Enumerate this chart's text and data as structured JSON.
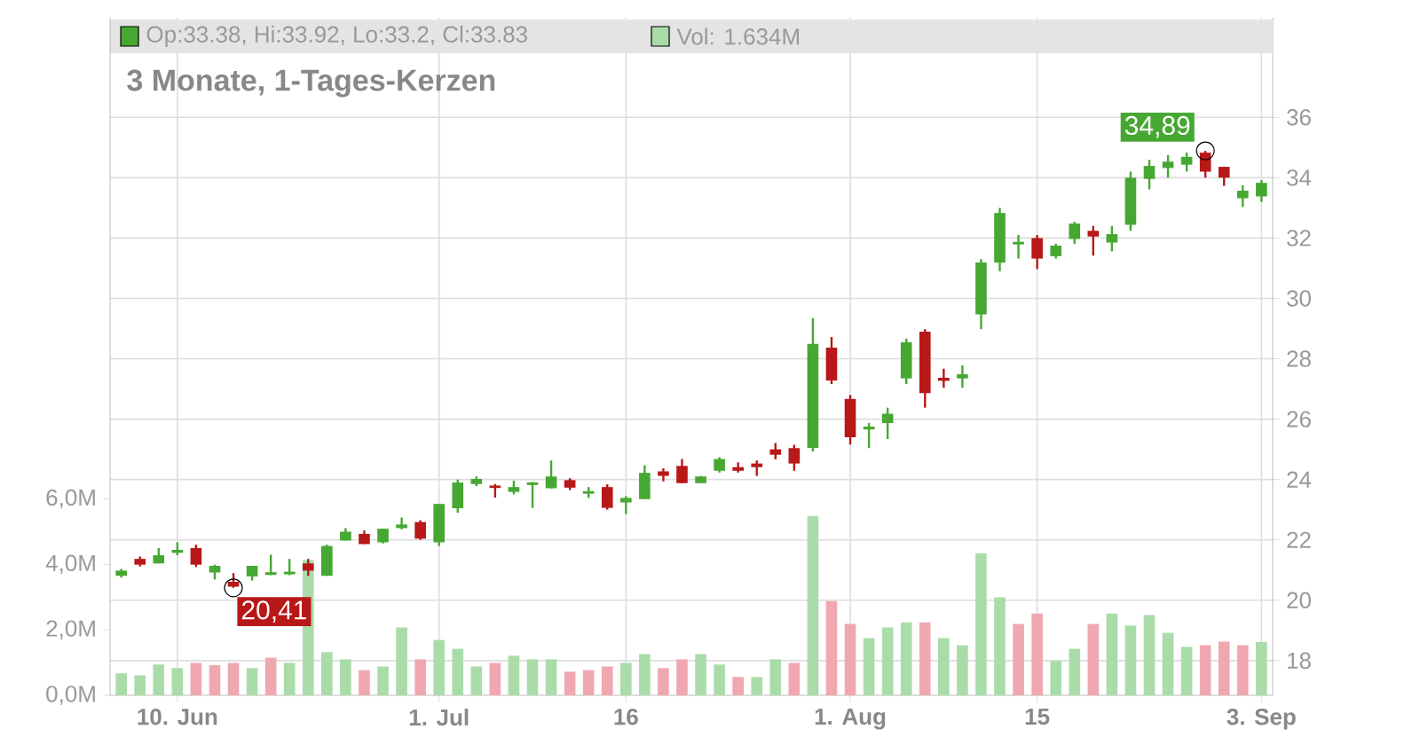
{
  "chart_data": {
    "type": "candlestick",
    "title": "3 Monate, 1-Tages-Kerzen",
    "categories": [
      null,
      null,
      null,
      "10. Jun",
      null,
      null,
      null,
      null,
      null,
      null,
      null,
      null,
      null,
      null,
      null,
      null,
      null,
      "1. Jul",
      null,
      null,
      null,
      null,
      null,
      null,
      null,
      null,
      null,
      "16",
      null,
      null,
      null,
      null,
      null,
      null,
      null,
      null,
      null,
      null,
      null,
      "1. Aug",
      null,
      null,
      null,
      null,
      null,
      null,
      null,
      null,
      null,
      "15",
      null,
      null,
      null,
      null,
      null,
      null,
      null,
      null,
      null,
      null,
      null,
      "3. Sep"
    ],
    "series": [
      {
        "name": "Op:33.38, Hi:33.92, Lo:33.2, Cl:33.83",
        "color": "#46a832",
        "ohlc": [
          [
            20.81,
            21.04,
            20.75,
            20.98
          ],
          [
            21.37,
            21.45,
            21.12,
            21.18
          ],
          [
            21.22,
            21.73,
            21.22,
            21.49
          ],
          [
            21.57,
            21.92,
            21.49,
            21.67
          ],
          [
            21.73,
            21.84,
            21.1,
            21.18
          ],
          [
            20.92,
            21.18,
            20.69,
            21.14
          ],
          [
            20.61,
            20.9,
            20.41,
            20.45
          ],
          [
            20.79,
            21.14,
            20.65,
            21.14
          ],
          [
            20.88,
            21.51,
            20.83,
            20.92
          ],
          [
            20.9,
            21.37,
            20.83,
            20.94
          ],
          [
            21.22,
            21.37,
            20.81,
            20.98
          ],
          [
            20.81,
            21.84,
            20.81,
            21.8
          ],
          [
            21.98,
            22.39,
            21.98,
            22.27
          ],
          [
            22.2,
            22.31,
            21.86,
            21.86
          ],
          [
            21.92,
            22.37,
            21.88,
            22.37
          ],
          [
            22.39,
            22.74,
            22.35,
            22.51
          ],
          [
            22.59,
            22.65,
            22.0,
            22.04
          ],
          [
            21.92,
            23.19,
            21.8,
            23.19
          ],
          [
            23.05,
            24.0,
            22.9,
            23.9
          ],
          [
            23.85,
            24.1,
            23.78,
            24.02
          ],
          [
            23.8,
            23.85,
            23.4,
            23.72
          ],
          [
            23.59,
            23.96,
            23.51,
            23.75
          ],
          [
            23.86,
            23.92,
            23.06,
            23.88
          ],
          [
            23.71,
            24.63,
            23.71,
            24.1
          ],
          [
            23.98,
            24.04,
            23.65,
            23.73
          ],
          [
            23.57,
            23.75,
            23.39,
            23.61
          ],
          [
            23.75,
            23.84,
            23.0,
            23.06
          ],
          [
            23.24,
            23.45,
            22.86,
            23.39
          ],
          [
            23.35,
            24.47,
            23.35,
            24.22
          ],
          [
            24.27,
            24.37,
            23.94,
            24.12
          ],
          [
            24.45,
            24.68,
            23.88,
            23.88
          ],
          [
            23.88,
            24.12,
            23.88,
            24.1
          ],
          [
            24.29,
            24.74,
            24.23,
            24.68
          ],
          [
            24.41,
            24.57,
            24.23,
            24.29
          ],
          [
            24.53,
            24.63,
            24.12,
            24.41
          ],
          [
            25.0,
            25.21,
            24.67,
            24.82
          ],
          [
            25.04,
            25.15,
            24.29,
            24.53
          ],
          [
            25.05,
            29.35,
            24.93,
            28.49
          ],
          [
            28.37,
            28.72,
            27.16,
            27.28
          ],
          [
            26.67,
            26.8,
            25.16,
            25.4
          ],
          [
            25.7,
            25.87,
            25.04,
            25.75
          ],
          [
            25.87,
            26.38,
            25.34,
            26.18
          ],
          [
            27.35,
            28.67,
            27.16,
            28.55
          ],
          [
            28.9,
            28.98,
            26.38,
            26.86
          ],
          [
            27.33,
            27.67,
            27.04,
            27.27
          ],
          [
            27.35,
            27.78,
            27.04,
            27.49
          ],
          [
            29.47,
            31.3,
            28.98,
            31.19
          ],
          [
            31.19,
            33.0,
            30.9,
            32.83
          ],
          [
            31.83,
            32.1,
            31.32,
            31.87
          ],
          [
            32.0,
            32.1,
            30.97,
            31.32
          ],
          [
            31.4,
            31.81,
            31.32,
            31.75
          ],
          [
            31.97,
            32.54,
            31.81,
            32.48
          ],
          [
            32.24,
            32.4,
            31.42,
            32.05
          ],
          [
            31.85,
            32.4,
            31.56,
            32.13
          ],
          [
            32.44,
            34.2,
            32.24,
            34.0
          ],
          [
            33.96,
            34.59,
            33.61,
            34.39
          ],
          [
            34.32,
            34.75,
            34.0,
            34.53
          ],
          [
            34.43,
            34.83,
            34.2,
            34.69
          ],
          [
            34.83,
            34.89,
            34.0,
            34.2
          ],
          [
            34.36,
            34.36,
            33.73,
            34.0
          ],
          [
            33.32,
            33.75,
            33.03,
            33.57
          ],
          [
            33.38,
            33.92,
            33.2,
            33.83
          ]
        ],
        "colors": [
          "#46a832",
          "#b81818",
          "#46a832",
          "#46a832",
          "#b81818",
          "#46a832",
          "#b81818",
          "#46a832",
          "#46a832",
          "#46a832",
          "#b81818",
          "#46a832",
          "#46a832",
          "#b81818",
          "#46a832",
          "#46a832",
          "#b81818",
          "#46a832",
          "#46a832",
          "#46a832",
          "#b81818",
          "#46a832",
          "#46a832",
          "#46a832",
          "#b81818",
          "#46a832",
          "#b81818",
          "#46a832",
          "#46a832",
          "#b81818",
          "#b81818",
          "#46a832",
          "#46a832",
          "#b81818",
          "#b81818",
          "#b81818",
          "#b81818",
          "#46a832",
          "#b81818",
          "#b81818",
          "#46a832",
          "#46a832",
          "#46a832",
          "#b81818",
          "#b81818",
          "#46a832",
          "#46a832",
          "#46a832",
          "#46a832",
          "#b81818",
          "#46a832",
          "#46a832",
          "#b81818",
          "#46a832",
          "#46a832",
          "#46a832",
          "#46a832",
          "#46a832",
          "#b81818",
          "#b81818",
          "#46a832",
          "#46a832"
        ]
      },
      {
        "name": "Vol: 1.634M",
        "type": "bar",
        "axis": "y2",
        "color": "#aadcaa",
        "values": [
          0.67,
          0.61,
          0.94,
          0.83,
          0.99,
          0.92,
          0.99,
          0.83,
          1.15,
          0.99,
          4.13,
          1.32,
          1.1,
          0.77,
          0.88,
          2.07,
          1.1,
          1.69,
          1.42,
          0.88,
          0.99,
          1.21,
          1.1,
          1.1,
          0.72,
          0.77,
          0.88,
          0.99,
          1.26,
          0.83,
          1.1,
          1.26,
          0.94,
          0.56,
          0.56,
          1.1,
          0.99,
          5.48,
          2.88,
          2.18,
          1.75,
          2.07,
          2.23,
          2.23,
          1.75,
          1.53,
          4.34,
          2.99,
          2.18,
          2.5,
          1.05,
          1.42,
          2.18,
          2.5,
          2.13,
          2.45,
          1.91,
          1.48,
          1.53,
          1.64,
          1.53,
          1.63
        ],
        "colors": [
          "#aadcaa",
          "#aadcaa",
          "#aadcaa",
          "#aadcaa",
          "#f0a8b0",
          "#f0a8b0",
          "#f0a8b0",
          "#aadcaa",
          "#f0a8b0",
          "#aadcaa",
          "#aadcaa",
          "#aadcaa",
          "#aadcaa",
          "#f0a8b0",
          "#aadcaa",
          "#aadcaa",
          "#f0a8b0",
          "#aadcaa",
          "#aadcaa",
          "#aadcaa",
          "#f0a8b0",
          "#aadcaa",
          "#aadcaa",
          "#aadcaa",
          "#f0a8b0",
          "#f0a8b0",
          "#f0a8b0",
          "#aadcaa",
          "#aadcaa",
          "#f0a8b0",
          "#f0a8b0",
          "#aadcaa",
          "#aadcaa",
          "#f0a8b0",
          "#aadcaa",
          "#aadcaa",
          "#f0a8b0",
          "#aadcaa",
          "#f0a8b0",
          "#f0a8b0",
          "#aadcaa",
          "#aadcaa",
          "#aadcaa",
          "#f0a8b0",
          "#aadcaa",
          "#aadcaa",
          "#aadcaa",
          "#aadcaa",
          "#f0a8b0",
          "#f0a8b0",
          "#aadcaa",
          "#aadcaa",
          "#f0a8b0",
          "#aadcaa",
          "#aadcaa",
          "#aadcaa",
          "#aadcaa",
          "#aadcaa",
          "#f0a8b0",
          "#f0a8b0",
          "#f0a8b0",
          "#aadcaa"
        ]
      },
      {
        "type": "scatter",
        "marker": "circle",
        "color": "#000000",
        "values": [
          null,
          null,
          null,
          null,
          null,
          null,
          20.41,
          null,
          null,
          null,
          null,
          null,
          null,
          null,
          null,
          null,
          null,
          null,
          null,
          null,
          null,
          null,
          null,
          null,
          null,
          null,
          null,
          null,
          null,
          null,
          null,
          null,
          null,
          null,
          null,
          null,
          null,
          null,
          null,
          null,
          null,
          null,
          null,
          null,
          null,
          null,
          null,
          null,
          null,
          null,
          null,
          null,
          null,
          null,
          null,
          null,
          null,
          null,
          34.89,
          null,
          null,
          null
        ]
      }
    ],
    "ylim": [
      16.85,
      39.3
    ],
    "yticks": [
      18,
      20,
      22,
      24,
      26,
      28,
      30,
      32,
      34,
      36
    ],
    "y2lim": [
      0,
      20.7
    ],
    "y2ticks": [
      {
        "value": 0,
        "label": "0,0M"
      },
      {
        "value": 2,
        "label": "2,0M"
      },
      {
        "value": 4,
        "label": "4,0M"
      },
      {
        "value": 6,
        "label": "6,0M"
      }
    ],
    "annotations": [
      "20,41",
      "34,89"
    ],
    "grid": true,
    "legend": "top left"
  }
}
